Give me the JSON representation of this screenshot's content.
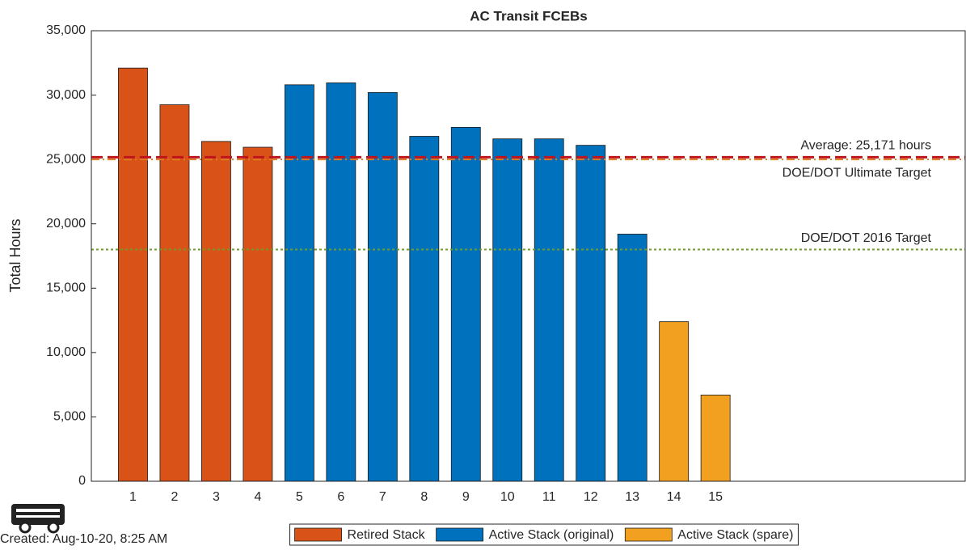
{
  "chart_data": {
    "type": "bar",
    "title": "AC Transit FCEBs",
    "ylabel": "Total Hours",
    "x": [
      1,
      2,
      3,
      4,
      5,
      6,
      7,
      8,
      9,
      10,
      11,
      12,
      13,
      14,
      15
    ],
    "series": [
      {
        "name": "Retired Stack",
        "color": "#d95319",
        "values": [
          32100,
          29250,
          26400,
          25950,
          null,
          null,
          null,
          null,
          null,
          null,
          null,
          null,
          null,
          null,
          null
        ]
      },
      {
        "name": "Active Stack (original)",
        "color": "#0072bd",
        "values": [
          null,
          null,
          null,
          null,
          30800,
          30950,
          30200,
          26800,
          27500,
          26600,
          26600,
          26100,
          19200,
          null,
          null
        ]
      },
      {
        "name": "Active Stack (spare)",
        "color": "#f2a01f",
        "values": [
          null,
          null,
          null,
          null,
          null,
          null,
          null,
          null,
          null,
          null,
          null,
          null,
          null,
          12400,
          6700
        ]
      }
    ],
    "reference_lines": [
      {
        "label": "Average: 25,171 hours",
        "value": 25171,
        "color": "#c0141e",
        "style": "dashed",
        "label_position": "above"
      },
      {
        "label": "DOE/DOT Ultimate Target",
        "value": 25000,
        "color": "#e07a1f",
        "style": "dashdot",
        "label_position": "below"
      },
      {
        "label": "DOE/DOT 2016 Target",
        "value": 18000,
        "color": "#6f9a2c",
        "style": "dotted",
        "label_position": "above"
      }
    ],
    "xlim": [
      0,
      21
    ],
    "xticks": [
      1,
      2,
      3,
      4,
      5,
      6,
      7,
      8,
      9,
      10,
      11,
      12,
      13,
      14,
      15
    ],
    "ylim": [
      0,
      35000
    ],
    "yticks": [
      0,
      {
        "value": 5000,
        "label": "5,000"
      },
      {
        "value": 10000,
        "label": "10,000"
      },
      {
        "value": 15000,
        "label": "15,000"
      },
      {
        "value": 20000,
        "label": "20,000"
      },
      {
        "value": 25000,
        "label": "25,000"
      },
      {
        "value": 30000,
        "label": "30,000"
      },
      {
        "value": 35000,
        "label": "35,000"
      }
    ],
    "legend": "bottom",
    "footer": "Created: Aug-10-20, 8:25 AM"
  }
}
